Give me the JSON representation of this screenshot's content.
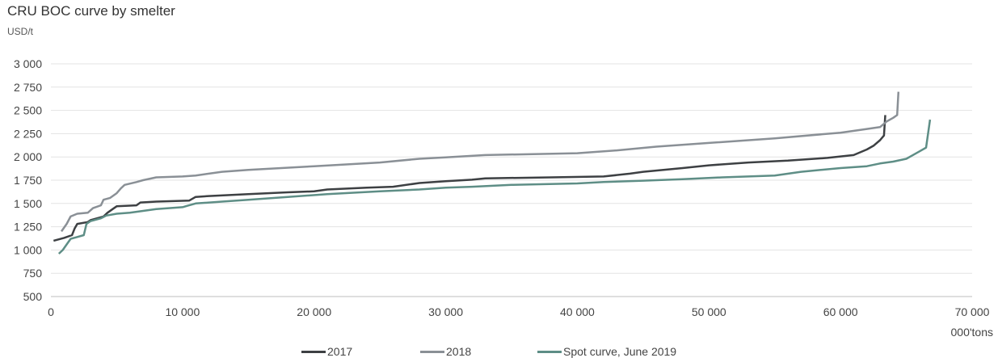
{
  "title": "CRU BOC curve by smelter",
  "unit_label": "USD/t",
  "x_unit_label": "000'tons",
  "chart_data": {
    "type": "line",
    "title": "CRU BOC curve by smelter",
    "ylabel": "USD/t",
    "xlabel": "000'tons",
    "xlim": [
      0,
      70000
    ],
    "ylim": [
      500,
      3000
    ],
    "x_ticks": [
      0,
      10000,
      20000,
      30000,
      40000,
      50000,
      60000,
      70000
    ],
    "x_tick_labels": [
      "0",
      "10 000",
      "20 000",
      "30 000",
      "40 000",
      "50 000",
      "60 000",
      "70 000"
    ],
    "y_ticks": [
      500,
      750,
      1000,
      1250,
      1500,
      1750,
      2000,
      2250,
      2500,
      2750,
      3000
    ],
    "y_tick_labels": [
      "500",
      "750",
      "1 000",
      "1 250",
      "1 500",
      "1 750",
      "2 000",
      "2 250",
      "2 500",
      "2 750",
      "3 000"
    ],
    "grid": "horizontal",
    "legend_position": "bottom-center",
    "series": [
      {
        "name": "2017",
        "color": "#3d4043",
        "points": [
          [
            200,
            1100
          ],
          [
            1000,
            1130
          ],
          [
            1600,
            1160
          ],
          [
            1800,
            1230
          ],
          [
            2000,
            1280
          ],
          [
            2800,
            1300
          ],
          [
            3000,
            1320
          ],
          [
            3500,
            1340
          ],
          [
            4000,
            1360
          ],
          [
            4300,
            1400
          ],
          [
            4700,
            1440
          ],
          [
            5000,
            1470
          ],
          [
            6500,
            1480
          ],
          [
            6800,
            1510
          ],
          [
            8000,
            1520
          ],
          [
            10500,
            1530
          ],
          [
            11000,
            1570
          ],
          [
            12000,
            1580
          ],
          [
            15000,
            1600
          ],
          [
            18000,
            1620
          ],
          [
            20000,
            1630
          ],
          [
            21000,
            1650
          ],
          [
            24000,
            1670
          ],
          [
            26000,
            1680
          ],
          [
            28000,
            1720
          ],
          [
            30000,
            1740
          ],
          [
            32000,
            1755
          ],
          [
            33000,
            1770
          ],
          [
            38000,
            1780
          ],
          [
            42000,
            1790
          ],
          [
            44000,
            1820
          ],
          [
            45000,
            1840
          ],
          [
            48000,
            1880
          ],
          [
            50000,
            1910
          ],
          [
            53000,
            1940
          ],
          [
            56000,
            1960
          ],
          [
            59000,
            1990
          ],
          [
            61000,
            2020
          ],
          [
            62000,
            2080
          ],
          [
            62500,
            2120
          ],
          [
            63000,
            2180
          ],
          [
            63300,
            2230
          ],
          [
            63400,
            2450
          ]
        ]
      },
      {
        "name": "2018",
        "color": "#8a9096",
        "points": [
          [
            800,
            1200
          ],
          [
            1200,
            1280
          ],
          [
            1500,
            1360
          ],
          [
            2000,
            1390
          ],
          [
            2800,
            1400
          ],
          [
            3200,
            1450
          ],
          [
            3800,
            1480
          ],
          [
            4000,
            1540
          ],
          [
            4500,
            1560
          ],
          [
            5000,
            1610
          ],
          [
            5300,
            1660
          ],
          [
            5600,
            1700
          ],
          [
            6500,
            1730
          ],
          [
            7000,
            1750
          ],
          [
            8000,
            1780
          ],
          [
            10000,
            1790
          ],
          [
            11000,
            1800
          ],
          [
            13000,
            1840
          ],
          [
            15000,
            1860
          ],
          [
            20000,
            1900
          ],
          [
            25000,
            1940
          ],
          [
            28000,
            1980
          ],
          [
            30000,
            1995
          ],
          [
            33000,
            2020
          ],
          [
            40000,
            2040
          ],
          [
            43000,
            2070
          ],
          [
            46000,
            2110
          ],
          [
            50000,
            2150
          ],
          [
            55000,
            2200
          ],
          [
            60000,
            2260
          ],
          [
            62000,
            2300
          ],
          [
            63000,
            2320
          ],
          [
            63500,
            2380
          ],
          [
            64000,
            2420
          ],
          [
            64300,
            2450
          ],
          [
            64400,
            2700
          ]
        ]
      },
      {
        "name": "Spot curve, June 2019",
        "color": "#5e8e86",
        "points": [
          [
            600,
            960
          ],
          [
            900,
            1000
          ],
          [
            1200,
            1060
          ],
          [
            1500,
            1120
          ],
          [
            2000,
            1140
          ],
          [
            2500,
            1160
          ],
          [
            2700,
            1280
          ],
          [
            3000,
            1310
          ],
          [
            3800,
            1340
          ],
          [
            4200,
            1370
          ],
          [
            5000,
            1390
          ],
          [
            6000,
            1400
          ],
          [
            7000,
            1420
          ],
          [
            8000,
            1440
          ],
          [
            10000,
            1460
          ],
          [
            10500,
            1480
          ],
          [
            11000,
            1500
          ],
          [
            13000,
            1520
          ],
          [
            15000,
            1540
          ],
          [
            18000,
            1570
          ],
          [
            21000,
            1600
          ],
          [
            25000,
            1630
          ],
          [
            28000,
            1650
          ],
          [
            30000,
            1670
          ],
          [
            32000,
            1680
          ],
          [
            35000,
            1700
          ],
          [
            40000,
            1715
          ],
          [
            42000,
            1730
          ],
          [
            45000,
            1745
          ],
          [
            48000,
            1760
          ],
          [
            51000,
            1780
          ],
          [
            55000,
            1800
          ],
          [
            57000,
            1840
          ],
          [
            60000,
            1880
          ],
          [
            61000,
            1890
          ],
          [
            62000,
            1900
          ],
          [
            63000,
            1930
          ],
          [
            64000,
            1950
          ],
          [
            65000,
            1980
          ],
          [
            65500,
            2020
          ],
          [
            66000,
            2060
          ],
          [
            66500,
            2100
          ],
          [
            66800,
            2400
          ]
        ]
      }
    ]
  }
}
